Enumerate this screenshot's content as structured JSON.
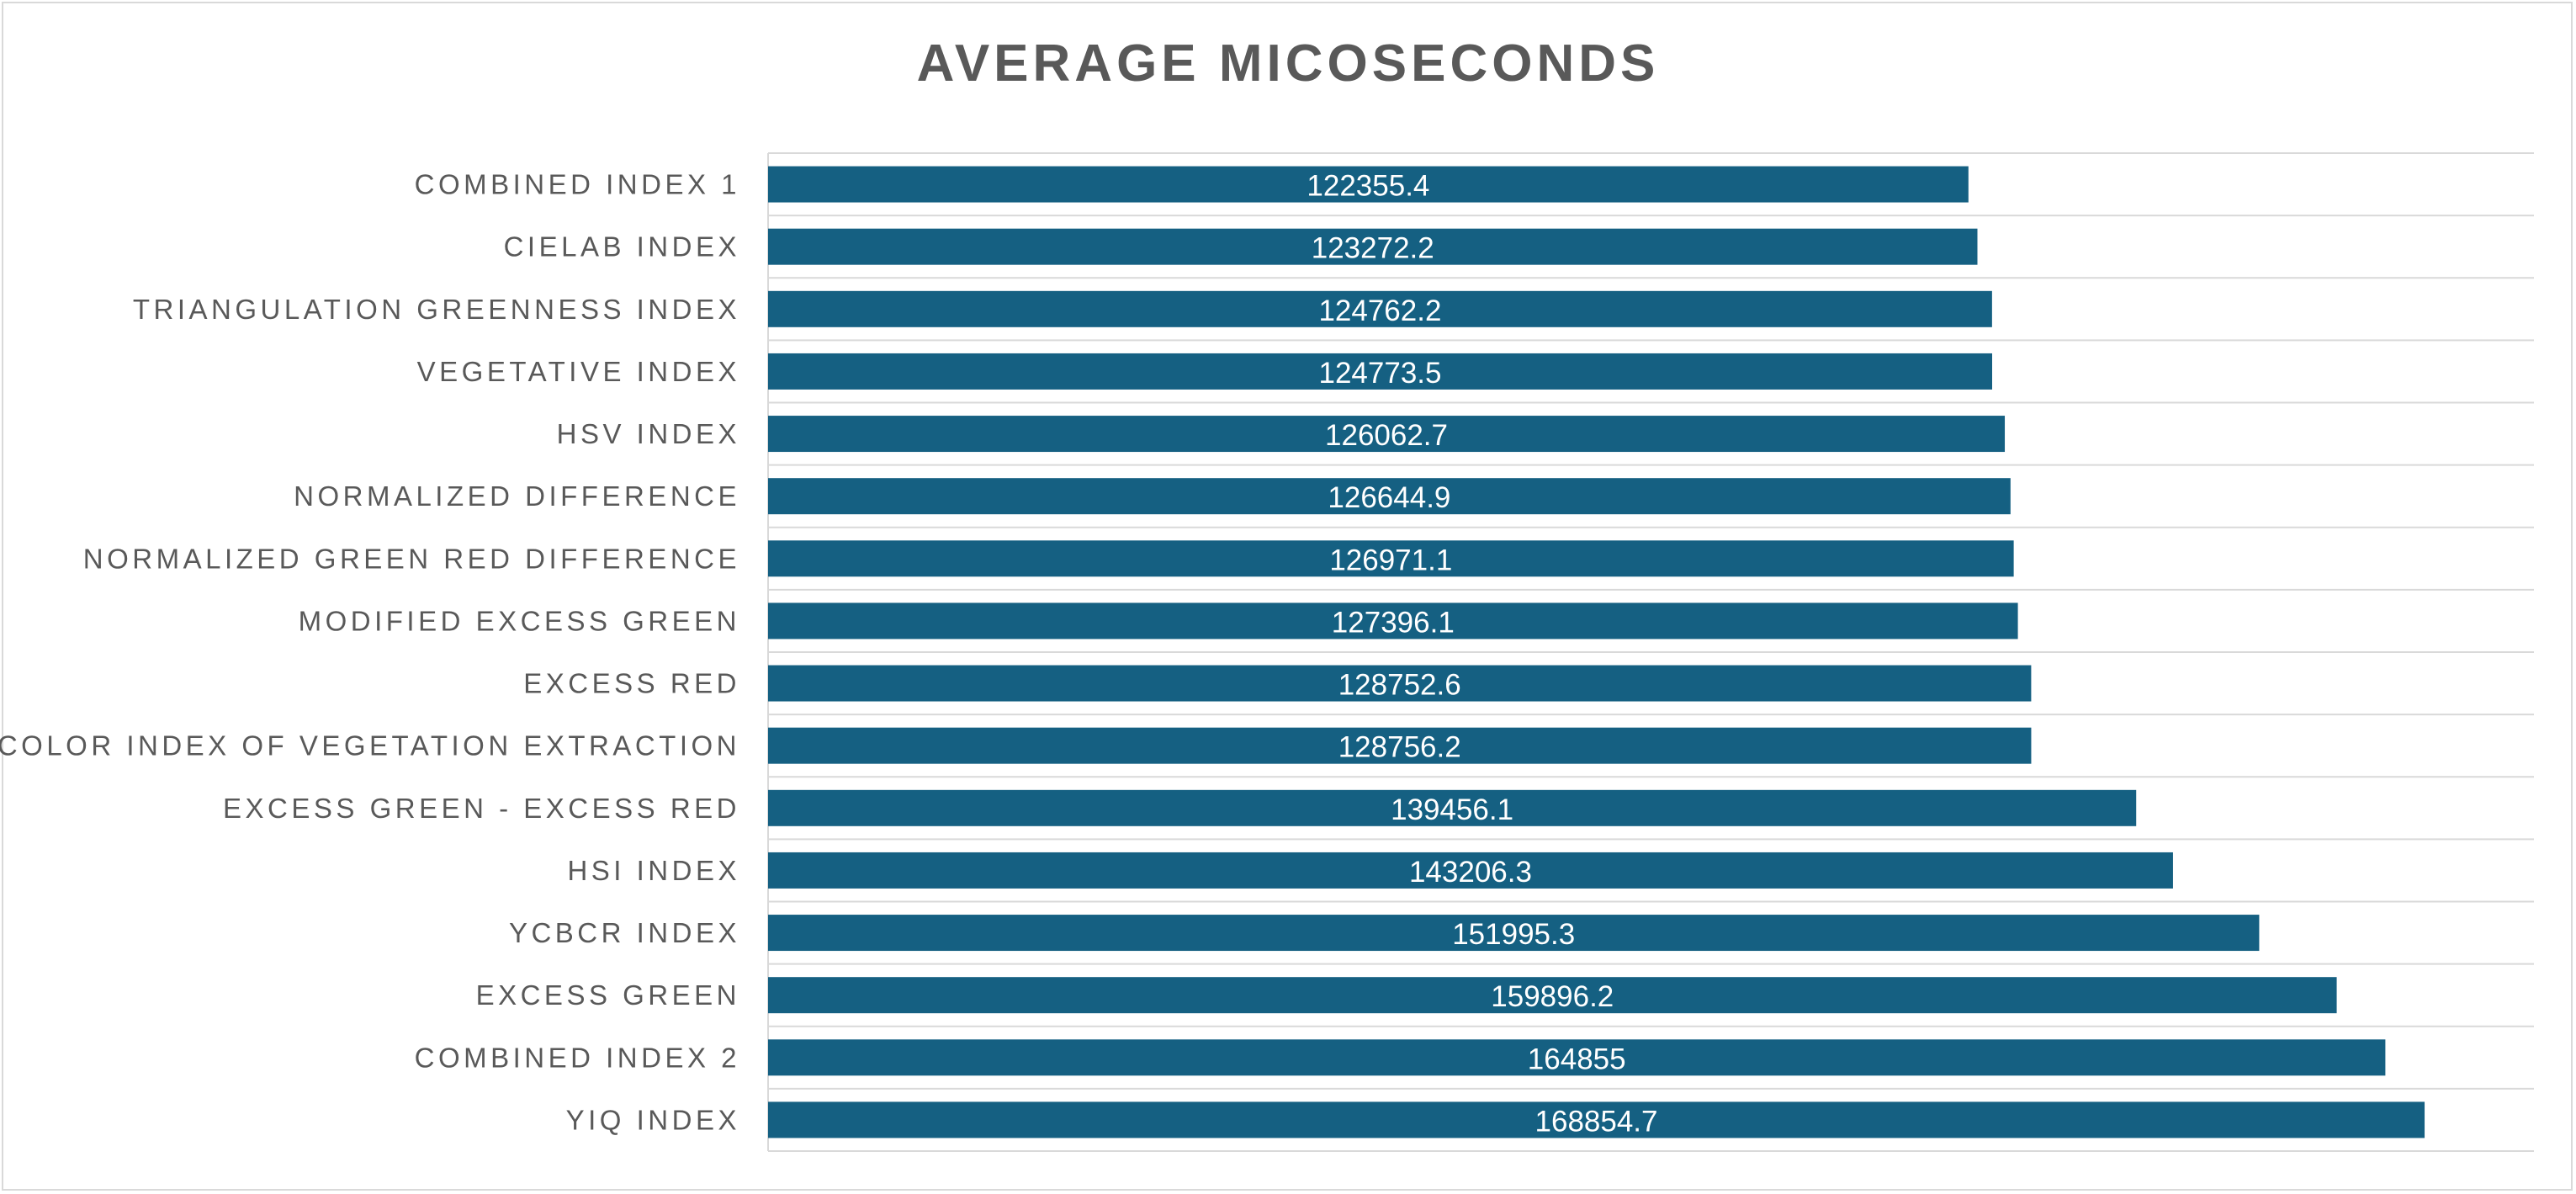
{
  "chart_data": {
    "type": "bar",
    "orientation": "horizontal",
    "title": "AVERAGE MICOSECONDS",
    "categories": [
      "COMBINED INDEX 1",
      "CIELAB INDEX",
      "TRIANGULATION GREENNESS INDEX",
      "VEGETATIVE INDEX",
      "HSV INDEX",
      "NORMALIZED DIFFERENCE",
      "NORMALIZED GREEN RED DIFFERENCE",
      "MODIFIED EXCESS GREEN",
      "EXCESS RED",
      "COLOR INDEX OF VEGETATION EXTRACTION",
      "EXCESS GREEN - EXCESS RED",
      "HSI INDEX",
      "YCBCR INDEX",
      "EXCESS GREEN",
      "COMBINED INDEX 2",
      "YIQ INDEX"
    ],
    "values": [
      122355.4,
      123272.2,
      124762.2,
      124773.5,
      126062.7,
      126644.9,
      126971.1,
      127396.1,
      128752.6,
      128756.2,
      139456.1,
      143206.3,
      151995.3,
      159896.2,
      164855,
      168854.7
    ],
    "data_labels": [
      "122355.4",
      "123272.2",
      "124762.2",
      "124773.5",
      "126062.7",
      "126644.9",
      "126971.1",
      "127396.1",
      "128752.6",
      "128756.2",
      "139456.1",
      "143206.3",
      "151995.3",
      "159896.2",
      "164855",
      "168854.7"
    ],
    "xlabel": "",
    "ylabel": "",
    "xlim": [
      0,
      180000
    ],
    "grid": true,
    "legend": "none",
    "bar_color": "#156082",
    "gridline_color": "#d9d9d9",
    "label_color": "#595959",
    "data_label_color": "#ffffff"
  }
}
